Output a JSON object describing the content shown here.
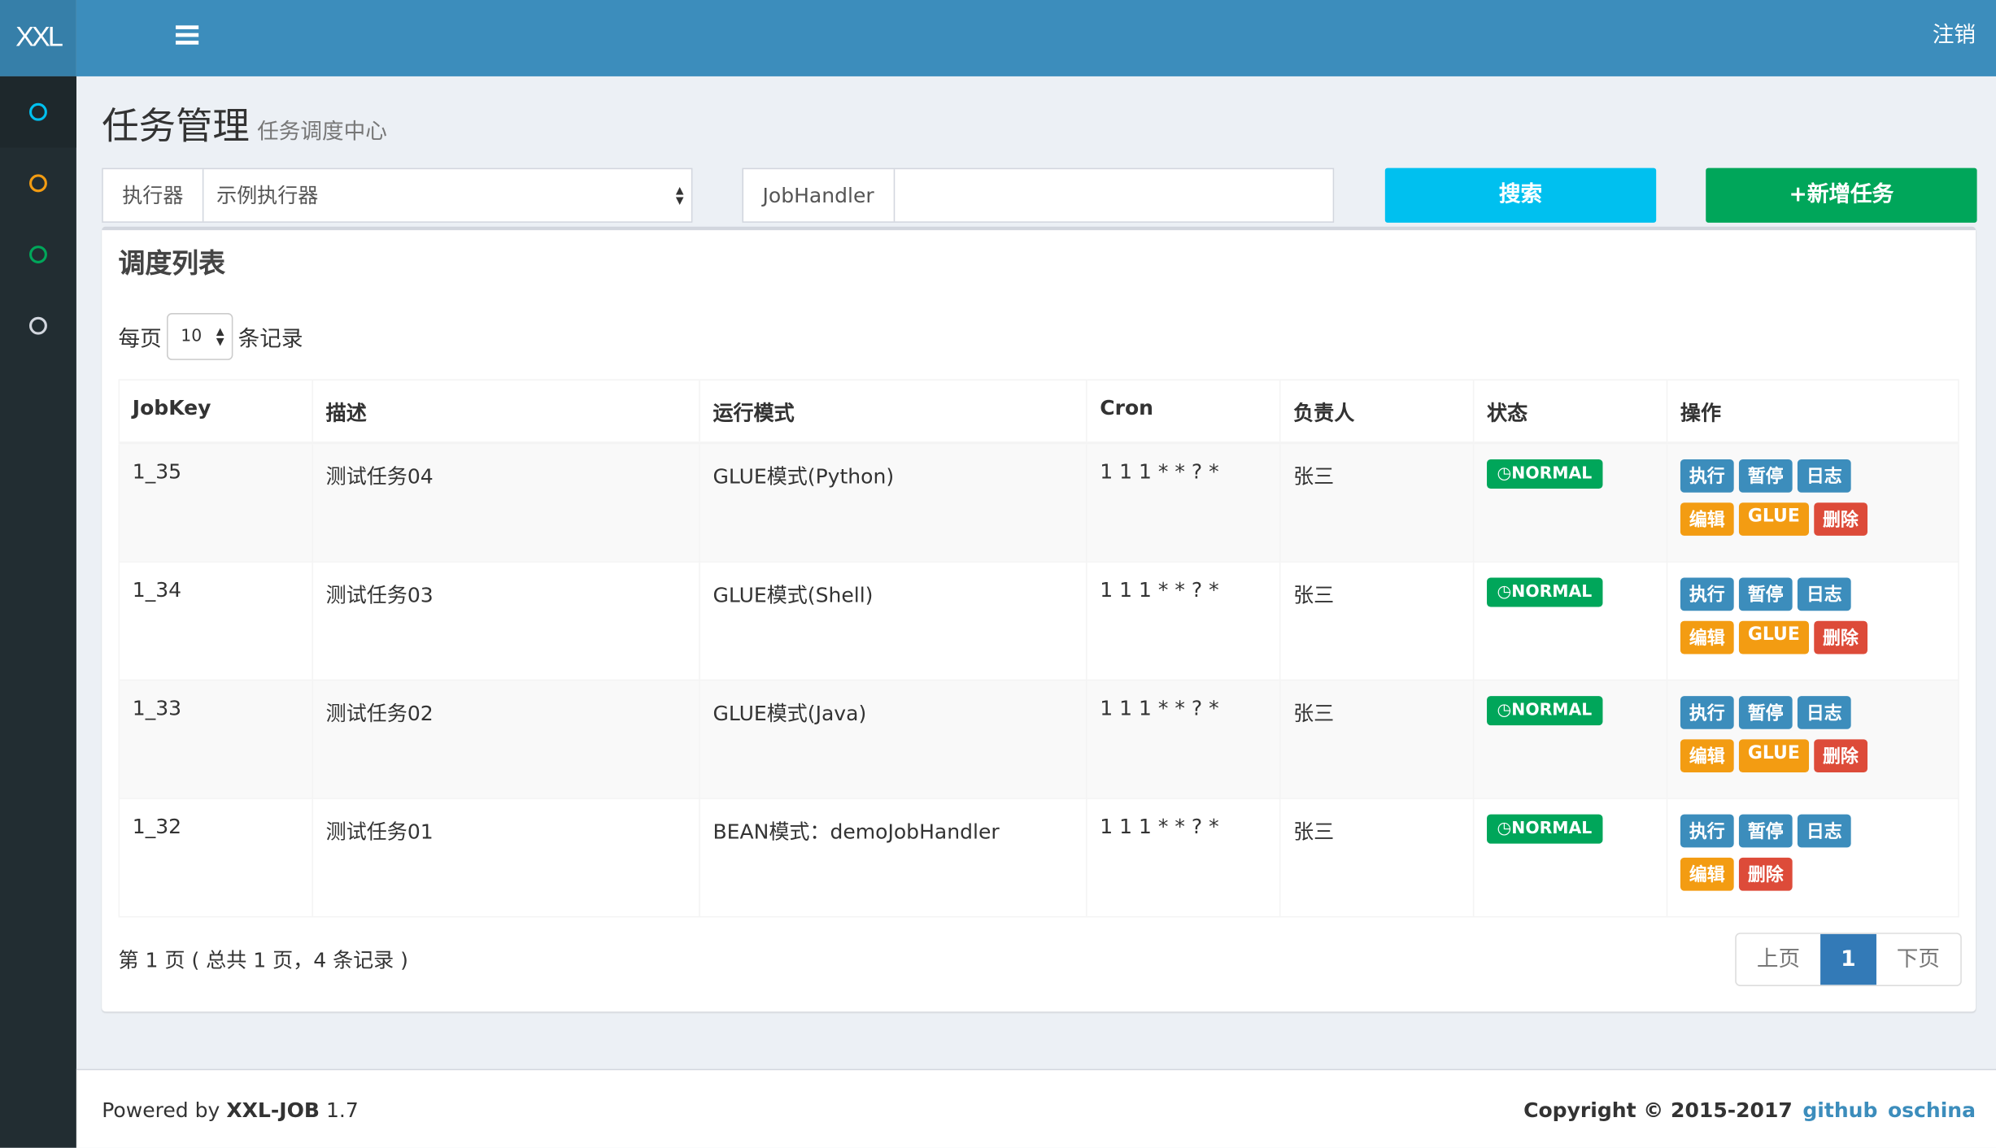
{
  "app": {
    "logo": "XXL",
    "logout": "注销"
  },
  "sidebar": {
    "items": [
      {
        "icon": "circle-icon",
        "color": "#00c0ef"
      },
      {
        "icon": "circle-icon",
        "color": "#f39c12"
      },
      {
        "icon": "circle-icon",
        "color": "#00a65a"
      },
      {
        "icon": "circle-icon",
        "color": "#d2d6de"
      }
    ]
  },
  "header": {
    "title": "任务管理",
    "subtitle": "任务调度中心"
  },
  "filters": {
    "executor_label": "执行器",
    "executor_value": "示例执行器",
    "jobhandler_label": "JobHandler",
    "jobhandler_value": "",
    "search": "搜索",
    "add": "+新增任务"
  },
  "box": {
    "title": "调度列表",
    "per_page_prefix": "每页",
    "per_page_value": "10",
    "per_page_suffix": "条记录"
  },
  "table": {
    "columns": [
      "JobKey",
      "描述",
      "运行模式",
      "Cron",
      "负责人",
      "状态",
      "操作"
    ],
    "rows": [
      {
        "key": "1_35",
        "desc": "测试任务04",
        "mode": "GLUE模式(Python)",
        "cron": "1 1 1 * * ? *",
        "owner": "张三",
        "status": "NORMAL",
        "glue": true
      },
      {
        "key": "1_34",
        "desc": "测试任务03",
        "mode": "GLUE模式(Shell)",
        "cron": "1 1 1 * * ? *",
        "owner": "张三",
        "status": "NORMAL",
        "glue": true
      },
      {
        "key": "1_33",
        "desc": "测试任务02",
        "mode": "GLUE模式(Java)",
        "cron": "1 1 1 * * ? *",
        "owner": "张三",
        "status": "NORMAL",
        "glue": true
      },
      {
        "key": "1_32",
        "desc": "测试任务01",
        "mode": "BEAN模式：demoJobHandler",
        "cron": "1 1 1 * * ? *",
        "owner": "张三",
        "status": "NORMAL",
        "glue": false
      }
    ],
    "ops": {
      "run": "执行",
      "pause": "暂停",
      "log": "日志",
      "edit": "编辑",
      "glue": "GLUE",
      "delete": "删除"
    }
  },
  "pagination": {
    "info": "第 1 页 ( 总共 1 页，4 条记录 )",
    "prev": "上页",
    "current": "1",
    "next": "下页"
  },
  "footer": {
    "powered_prefix": "Powered by ",
    "product": "XXL-JOB",
    "version": " 1.7",
    "copyright": "Copyright © 2015-2017",
    "github": "github",
    "oschina": "oschina"
  }
}
